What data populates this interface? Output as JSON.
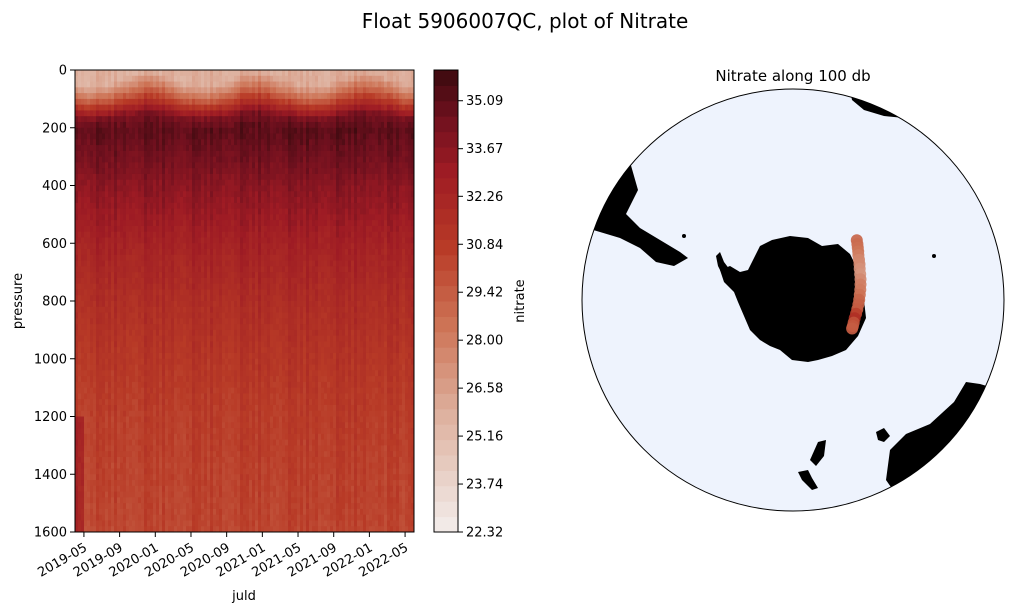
{
  "figure": {
    "title": "Float 5906007QC, plot of Nitrate"
  },
  "chart_data": [
    {
      "type": "heatmap",
      "title": "",
      "xlabel": "juld",
      "ylabel": "pressure",
      "x_ticks": [
        "2019-05",
        "2019-09",
        "2020-01",
        "2020-05",
        "2020-09",
        "2021-01",
        "2021-05",
        "2021-09",
        "2022-01",
        "2022-05"
      ],
      "xlim": [
        "2019-04",
        "2022-06"
      ],
      "y_ticks": [
        0,
        200,
        400,
        600,
        800,
        1000,
        1200,
        1400,
        1600
      ],
      "ylim": [
        1600,
        0
      ],
      "y_inverted": true,
      "colorbar": {
        "label": "nitrate",
        "ticks": [
          22.32,
          23.74,
          25.16,
          26.58,
          28.0,
          29.42,
          30.84,
          32.26,
          33.67,
          35.09
        ],
        "range": [
          22.32,
          36.0
        ],
        "colormap": "Reds",
        "levels": 30
      },
      "profile_colors_by_depth": [
        {
          "pressure": 0,
          "nitrate": 26.0
        },
        {
          "pressure": 50,
          "nitrate": 28.5
        },
        {
          "pressure": 100,
          "nitrate": 31.5
        },
        {
          "pressure": 150,
          "nitrate": 34.5
        },
        {
          "pressure": 200,
          "nitrate": 35.2
        },
        {
          "pressure": 300,
          "nitrate": 34.6
        },
        {
          "pressure": 400,
          "nitrate": 33.8
        },
        {
          "pressure": 600,
          "nitrate": 32.6
        },
        {
          "pressure": 800,
          "nitrate": 31.8
        },
        {
          "pressure": 1000,
          "nitrate": 31.2
        },
        {
          "pressure": 1200,
          "nitrate": 30.8
        },
        {
          "pressure": 1400,
          "nitrate": 30.6
        },
        {
          "pressure": 1600,
          "nitrate": 30.4
        }
      ]
    },
    {
      "type": "scatter",
      "title": "Nitrate along 100 db",
      "projection": "south-polar-stereographic",
      "ocean_color": "#eef3fd",
      "land_color": "#000000",
      "track_points": [
        {
          "lon": 52.0,
          "lat": -51.0,
          "nitrate": 29.0
        },
        {
          "lon": 53.5,
          "lat": -51.5,
          "nitrate": 28.8
        },
        {
          "lon": 55.0,
          "lat": -52.0,
          "nitrate": 28.6
        },
        {
          "lon": 56.5,
          "lat": -52.5,
          "nitrate": 28.4
        },
        {
          "lon": 58.0,
          "lat": -53.0,
          "nitrate": 28.0
        },
        {
          "lon": 60.0,
          "lat": -53.5,
          "nitrate": 27.6
        },
        {
          "lon": 62.0,
          "lat": -54.0,
          "nitrate": 27.5
        },
        {
          "lon": 64.0,
          "lat": -54.5,
          "nitrate": 27.2
        },
        {
          "lon": 66.5,
          "lat": -55.0,
          "nitrate": 27.0
        },
        {
          "lon": 69.0,
          "lat": -55.5,
          "nitrate": 27.5
        },
        {
          "lon": 71.5,
          "lat": -56.0,
          "nitrate": 28.0
        },
        {
          "lon": 74.0,
          "lat": -56.5,
          "nitrate": 28.2
        },
        {
          "lon": 76.5,
          "lat": -57.0,
          "nitrate": 28.5
        },
        {
          "lon": 79.0,
          "lat": -57.5,
          "nitrate": 29.0
        },
        {
          "lon": 81.5,
          "lat": -58.0,
          "nitrate": 29.2
        },
        {
          "lon": 84.0,
          "lat": -58.5,
          "nitrate": 29.4
        },
        {
          "lon": 86.5,
          "lat": -59.0,
          "nitrate": 30.5
        },
        {
          "lon": 89.0,
          "lat": -59.5,
          "nitrate": 31.5
        },
        {
          "lon": 91.5,
          "lat": -59.8,
          "nitrate": 29.8
        },
        {
          "lon": 93.5,
          "lat": -60.0,
          "nitrate": 29.6
        },
        {
          "lon": 95.0,
          "lat": -60.2,
          "nitrate": 29.4
        }
      ]
    }
  ]
}
